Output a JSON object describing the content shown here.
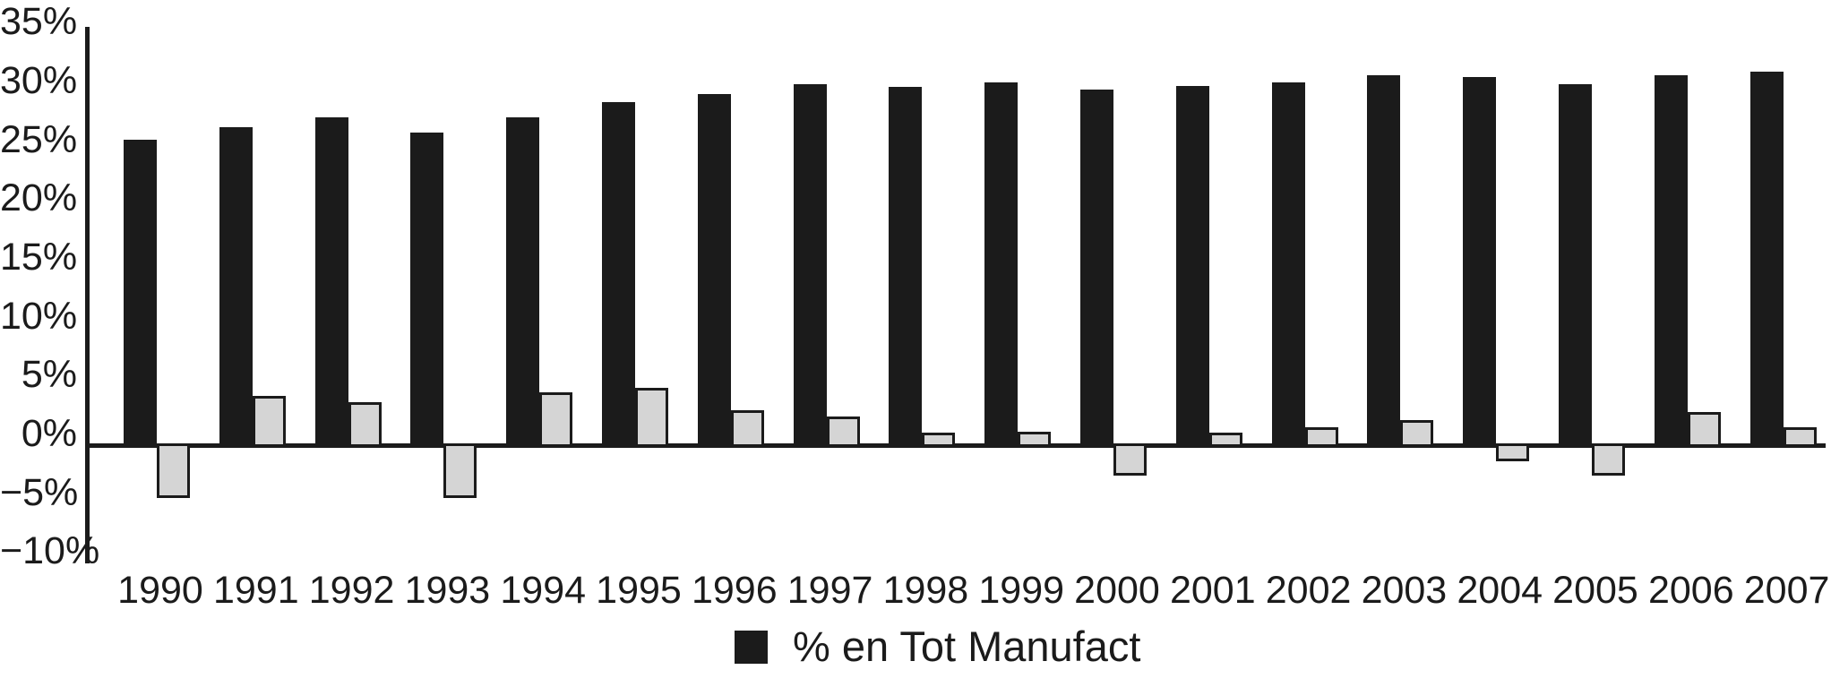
{
  "chart_data": {
    "type": "bar",
    "categories": [
      "1990",
      "1991",
      "1992",
      "1993",
      "1994",
      "1995",
      "1996",
      "1997",
      "1998",
      "1999",
      "2000",
      "2001",
      "2002",
      "2003",
      "2004",
      "2005",
      "2006",
      "2007"
    ],
    "series": [
      {
        "name": "% en Tot Manufact",
        "color": "#1b1b1b",
        "values": [
          26.1,
          27.2,
          28.0,
          26.7,
          28.0,
          29.3,
          30.0,
          30.8,
          30.6,
          31.0,
          30.4,
          30.7,
          31.0,
          31.6,
          31.4,
          30.8,
          31.6,
          31.9
        ]
      },
      {
        "name": "",
        "color": "#d5d5d5",
        "values": [
          -4.3,
          4.0,
          3.5,
          -4.3,
          4.3,
          4.7,
          2.8,
          2.3,
          0.9,
          1.0,
          -2.4,
          0.9,
          1.4,
          2.0,
          -1.2,
          -2.4,
          2.7,
          1.4
        ]
      }
    ],
    "y_ticks": [
      {
        "value": 35,
        "label": "35%"
      },
      {
        "value": 30,
        "label": "30%"
      },
      {
        "value": 25,
        "label": "25%"
      },
      {
        "value": 20,
        "label": "20%"
      },
      {
        "value": 15,
        "label": "15%"
      },
      {
        "value": 10,
        "label": "10%"
      },
      {
        "value": 5,
        "label": "5%"
      },
      {
        "value": 0,
        "label": "0%"
      },
      {
        "value": -5,
        "label": "−5%"
      },
      {
        "value": -10,
        "label": "−10%"
      }
    ],
    "ylim": [
      -10,
      35.5
    ],
    "grid": false,
    "legend": {
      "position": "bottom-center",
      "entries": [
        {
          "label": "% en Tot Manufact",
          "swatch_color": "#1b1b1b",
          "swatch_shape": "square"
        }
      ]
    },
    "colors": {
      "axis": "#1b1b1b",
      "bar_primary": "#1b1b1b",
      "bar_secondary_fill": "#d5d5d5",
      "bar_secondary_border": "#1b1b1b",
      "background": "#ffffff",
      "text": "#1b1b1b"
    }
  }
}
